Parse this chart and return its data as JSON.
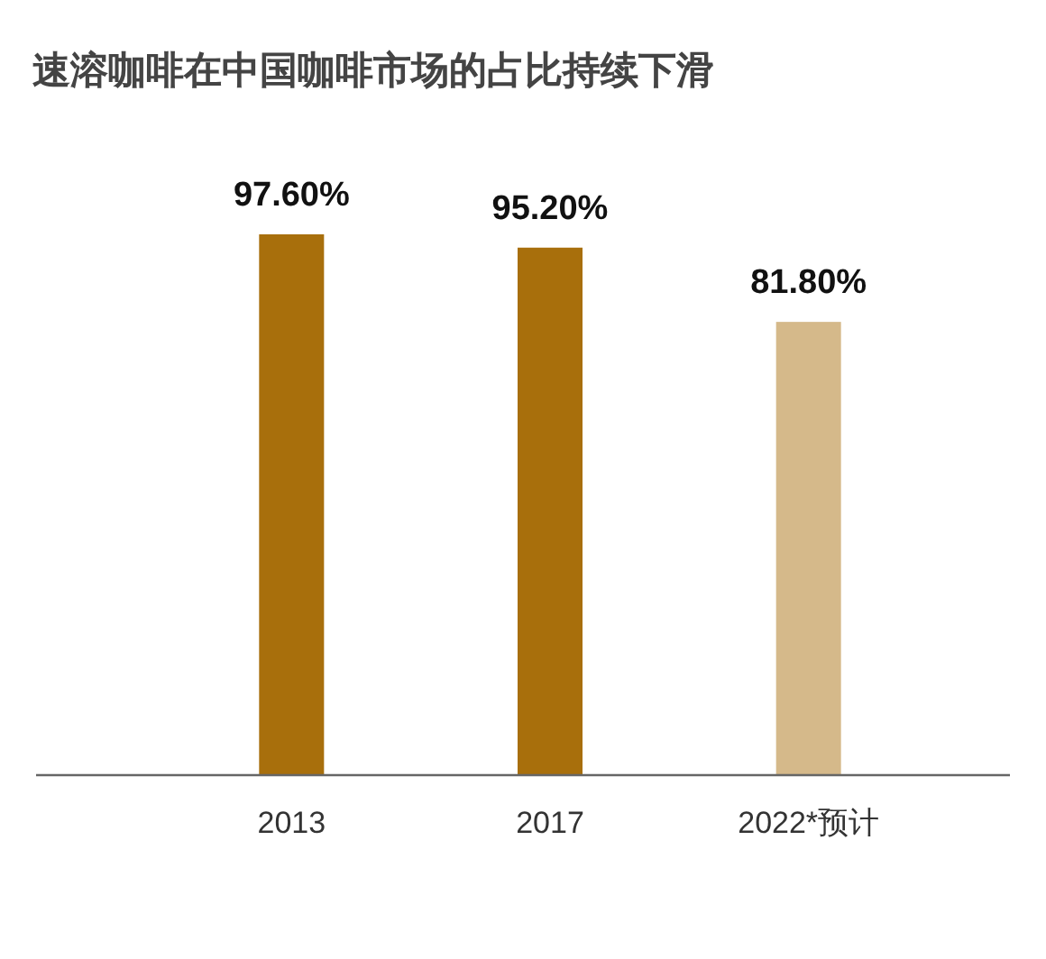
{
  "chart_data": {
    "type": "bar",
    "title": "速溶咖啡在中国咖啡市场的占比持续下滑",
    "categories": [
      "2013",
      "2017",
      "2022*预计"
    ],
    "values": [
      97.6,
      95.2,
      81.8
    ],
    "value_labels": [
      "97.60%",
      "95.20%",
      "81.80%"
    ],
    "colors": [
      "#a86f0c",
      "#a86f0c",
      "#d5b98a"
    ]
  }
}
